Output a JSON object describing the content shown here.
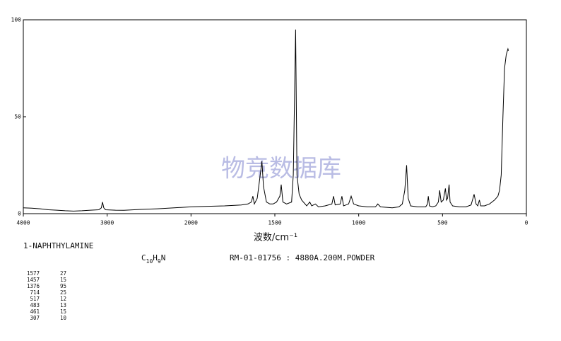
{
  "chart_data": {
    "type": "line",
    "title": "1-NAPHTHYLAMINE",
    "formula": [
      "C",
      "10",
      "H",
      "9",
      "N"
    ],
    "sample_info": "RM-01-01756 : 4880A.200M.POWDER",
    "watermark": "物竞数据库",
    "xlabel": "波数/cm⁻¹",
    "color": "#000000",
    "grid": false,
    "xlim": [
      4000,
      0
    ],
    "xticks": [
      4000,
      3000,
      2000,
      1500,
      1000,
      500,
      0
    ],
    "ylim": [
      0,
      100
    ],
    "yticks": [
      0,
      50,
      100
    ],
    "x": [
      4000,
      3900,
      3800,
      3700,
      3600,
      3500,
      3400,
      3300,
      3200,
      3100,
      3070,
      3055,
      3040,
      3020,
      2900,
      2800,
      2600,
      2400,
      2200,
      2000,
      1900,
      1800,
      1700,
      1660,
      1640,
      1631,
      1622,
      1605,
      1590,
      1577,
      1568,
      1550,
      1530,
      1510,
      1490,
      1470,
      1462,
      1452,
      1430,
      1400,
      1390,
      1376,
      1368,
      1355,
      1340,
      1310,
      1292,
      1280,
      1258,
      1240,
      1200,
      1160,
      1150,
      1140,
      1110,
      1100,
      1090,
      1060,
      1045,
      1030,
      1000,
      950,
      900,
      886,
      870,
      800,
      760,
      740,
      725,
      714,
      705,
      690,
      650,
      600,
      590,
      585,
      578,
      560,
      540,
      525,
      517,
      508,
      495,
      489,
      483,
      476,
      470,
      461,
      455,
      440,
      400,
      360,
      330,
      318,
      312,
      300,
      290,
      280,
      272,
      250,
      220,
      190,
      170,
      160,
      150,
      140,
      130,
      120,
      110,
      107
    ],
    "values": [
      3,
      2.8,
      2.5,
      2,
      1.8,
      1.5,
      1.3,
      1.5,
      1.8,
      2,
      3,
      6,
      3,
      2,
      1.8,
      1.7,
      2.2,
      2.5,
      3,
      3.5,
      3.8,
      4,
      4.5,
      5,
      6,
      9,
      5,
      8,
      18,
      27,
      14,
      6,
      5,
      5,
      6,
      9,
      15,
      6,
      5,
      6,
      20,
      95,
      20,
      10,
      7,
      4,
      6,
      4,
      5,
      3.5,
      4,
      5,
      9,
      4.5,
      5,
      9,
      4,
      5,
      9,
      5,
      4,
      3.5,
      3.5,
      5,
      3.5,
      3,
      3.5,
      5,
      12,
      25,
      8,
      4,
      3.5,
      3.5,
      5,
      9,
      4,
      3.5,
      4,
      6,
      12,
      6,
      7,
      10,
      13,
      7,
      8,
      15,
      6,
      4,
      3.5,
      3.5,
      4.5,
      8,
      10,
      5,
      4,
      7,
      4,
      4,
      5,
      7,
      9,
      12,
      20,
      50,
      75,
      82,
      85,
      84
    ],
    "peaks": [
      [
        1577,
        27
      ],
      [
        1457,
        15
      ],
      [
        1376,
        95
      ],
      [
        714,
        25
      ],
      [
        517,
        12
      ],
      [
        483,
        13
      ],
      [
        461,
        15
      ],
      [
        307,
        10
      ]
    ]
  }
}
